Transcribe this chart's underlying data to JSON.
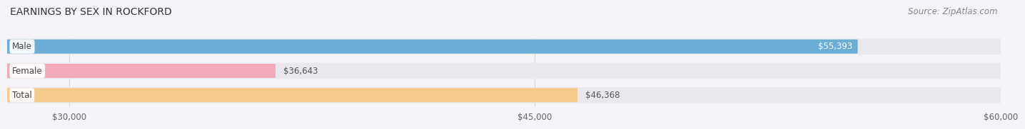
{
  "title": "EARNINGS BY SEX IN ROCKFORD",
  "source": "Source: ZipAtlas.com",
  "categories": [
    "Male",
    "Female",
    "Total"
  ],
  "values": [
    55393,
    36643,
    46368
  ],
  "bar_colors": [
    "#6aaed6",
    "#f4a9b8",
    "#f5c989"
  ],
  "bar_bg_color": "#e8e8ee",
  "xlim": [
    30000,
    60000
  ],
  "xmin": 28000,
  "xticks": [
    30000,
    45000,
    60000
  ],
  "xtick_labels": [
    "$30,000",
    "$45,000",
    "$60,000"
  ],
  "value_labels": [
    "$55,393",
    "$36,643",
    "$46,368"
  ],
  "value_label_inside": [
    true,
    false,
    false
  ],
  "title_fontsize": 10,
  "source_fontsize": 8.5,
  "tick_fontsize": 8.5,
  "bar_label_fontsize": 8.5,
  "category_fontsize": 8.5,
  "background_color": "#f4f4f8",
  "bar_height": 0.58,
  "bar_gap": 0.42
}
